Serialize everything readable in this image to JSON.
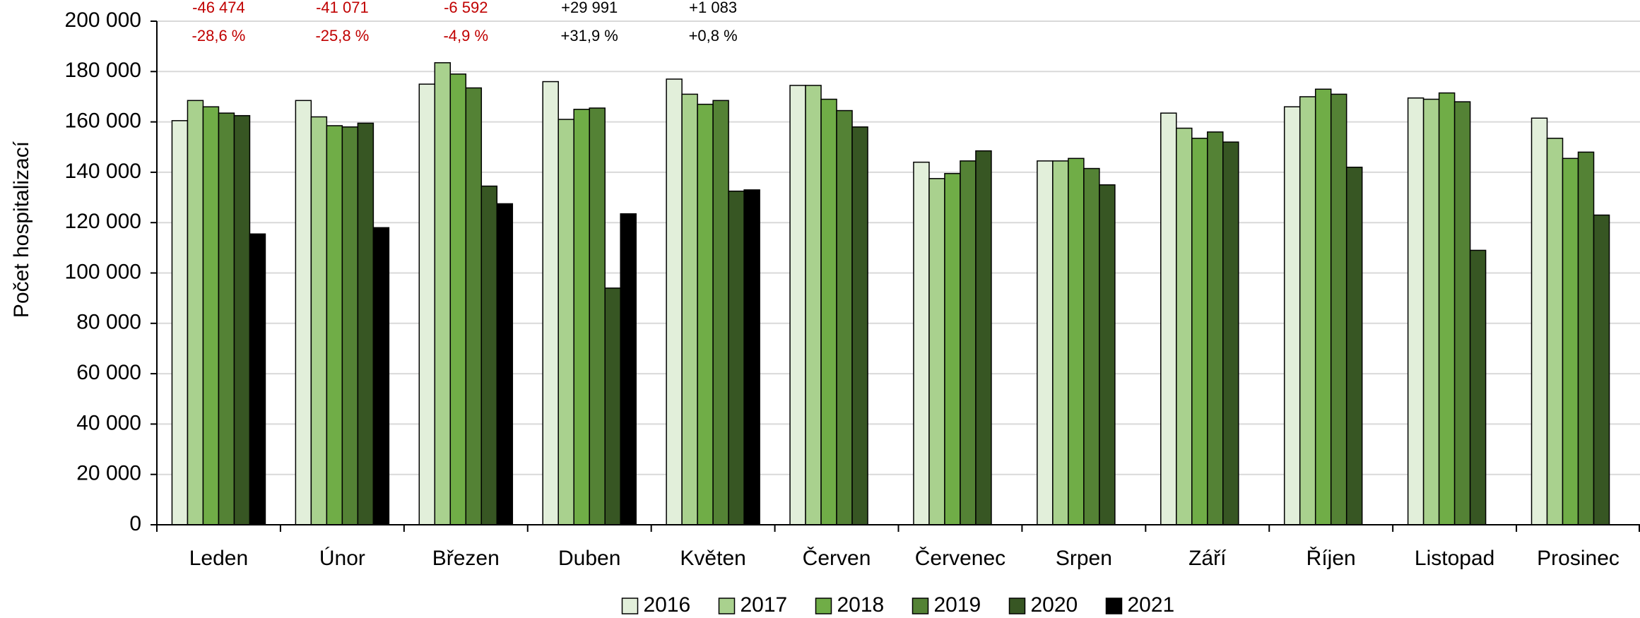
{
  "chart_data": {
    "type": "bar",
    "y_label": "Počet hospitalizací",
    "categories": [
      "Leden",
      "Únor",
      "Březen",
      "Duben",
      "Květen",
      "Červen",
      "Červenec",
      "Srpen",
      "Září",
      "Říjen",
      "Listopad",
      "Prosinec"
    ],
    "series": [
      {
        "name": "2016",
        "color": "#e2efda",
        "values": [
          160500,
          168500,
          175000,
          176000,
          177000,
          174500,
          144000,
          144500,
          163500,
          166000,
          169500,
          161500
        ]
      },
      {
        "name": "2017",
        "color": "#a9d18e",
        "values": [
          168500,
          162000,
          183500,
          161000,
          171000,
          174500,
          137500,
          144500,
          157500,
          170000,
          169000,
          153500
        ]
      },
      {
        "name": "2018",
        "color": "#70ad47",
        "values": [
          166000,
          158500,
          179000,
          165000,
          167000,
          169000,
          139500,
          145500,
          153500,
          173000,
          171500,
          145500
        ]
      },
      {
        "name": "2019",
        "color": "#548235",
        "values": [
          163500,
          158000,
          173500,
          165500,
          168500,
          164500,
          144500,
          141500,
          156000,
          171000,
          168000,
          148000
        ]
      },
      {
        "name": "2020",
        "color": "#375623",
        "values": [
          162500,
          159500,
          134500,
          94000,
          132500,
          158000,
          148500,
          135000,
          152000,
          142000,
          109000,
          123000
        ]
      },
      {
        "name": "2021",
        "color": "#000000",
        "values": [
          115500,
          118000,
          127500,
          123500,
          133000,
          null,
          null,
          null,
          null,
          null,
          null,
          null
        ]
      }
    ],
    "annotations": [
      {
        "difference": "-46 474",
        "percent": "-28,6 %",
        "color": "#c00000"
      },
      {
        "difference": "-41 071",
        "percent": "-25,8 %",
        "color": "#c00000"
      },
      {
        "difference": "-6 592",
        "percent": "-4,9 %",
        "color": "#c00000"
      },
      {
        "difference": "+29 991",
        "percent": "+31,9 %",
        "color": "#000000"
      },
      {
        "difference": "+1 083",
        "percent": "+0,8 %",
        "color": "#000000"
      }
    ],
    "ylim": [
      0,
      200000
    ],
    "yticks": [
      {
        "value": 0,
        "label": "0"
      },
      {
        "value": 20000,
        "label": "20 000"
      },
      {
        "value": 40000,
        "label": "40 000"
      },
      {
        "value": 60000,
        "label": "60 000"
      },
      {
        "value": 80000,
        "label": "80 000"
      },
      {
        "value": 100000,
        "label": "100 000"
      },
      {
        "value": 120000,
        "label": "120 000"
      },
      {
        "value": 140000,
        "label": "140 000"
      },
      {
        "value": 160000,
        "label": "160 000"
      },
      {
        "value": 180000,
        "label": "180 000"
      },
      {
        "value": 200000,
        "label": "200 000"
      }
    ],
    "grid": true
  }
}
